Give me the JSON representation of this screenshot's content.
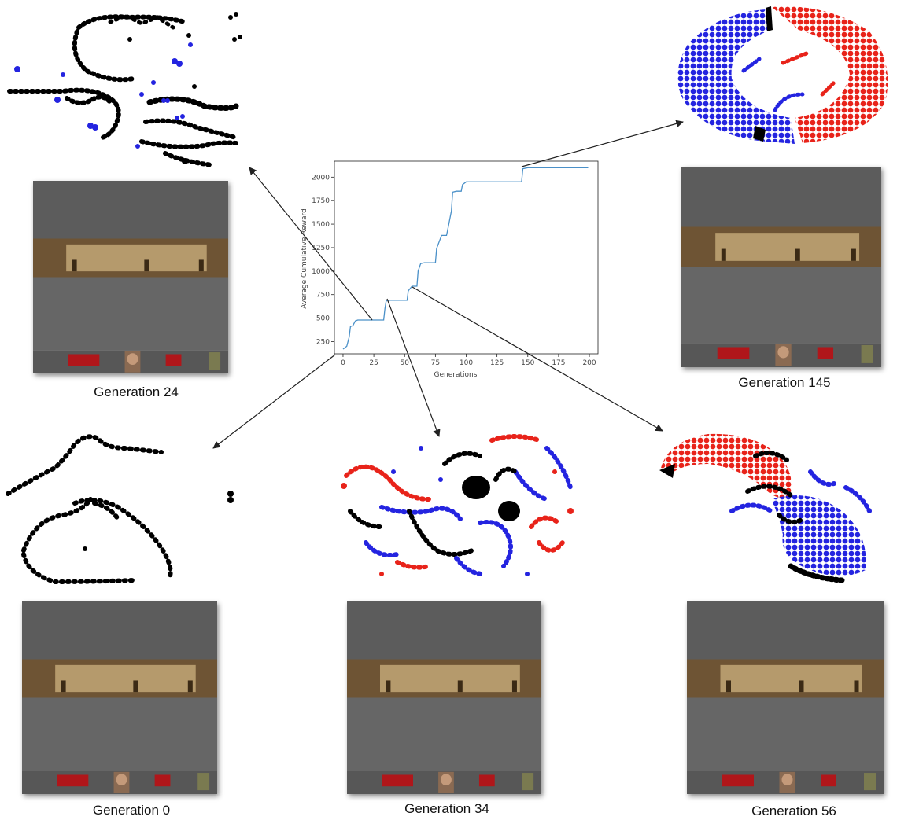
{
  "captions": {
    "gen24": "Generation 24",
    "gen145": "Generation 145",
    "gen0": "Generation 0",
    "gen34": "Generation 34",
    "gen56": "Generation 56"
  },
  "colors": {
    "series_line": "#4a90c8",
    "dot_red": "#e8231a",
    "dot_blue": "#2424e0",
    "dot_black": "#000000",
    "ceiling": "#5c5c5c",
    "wall_brown": "#6e5434",
    "wall_panel": "#b59a6c",
    "floor": "#666666",
    "hud": "#575757",
    "hud_red": "#b0161a"
  },
  "chart_data": {
    "type": "line",
    "xlabel": "Generations",
    "ylabel": "Average Cumulative Reward",
    "xlim": [
      -7,
      207
    ],
    "ylim": [
      120,
      2170
    ],
    "xticks": [
      0,
      25,
      50,
      75,
      100,
      125,
      150,
      175,
      200
    ],
    "yticks": [
      250,
      500,
      750,
      1000,
      1250,
      1500,
      1750,
      2000
    ],
    "grid": false,
    "series": [
      {
        "x": [
          0,
          3,
          5,
          6,
          8,
          10,
          12,
          22,
          24,
          33,
          34,
          35,
          36,
          52,
          53,
          56,
          60,
          61,
          63,
          66,
          70,
          75,
          76,
          80,
          84,
          85,
          88,
          89,
          92,
          96,
          97,
          100,
          127,
          145,
          146,
          150,
          195,
          199
        ],
        "y": [
          170,
          200,
          300,
          410,
          420,
          470,
          480,
          480,
          480,
          480,
          600,
          680,
          690,
          690,
          790,
          840,
          840,
          1000,
          1080,
          1090,
          1090,
          1090,
          1240,
          1380,
          1380,
          1440,
          1640,
          1840,
          1850,
          1850,
          1920,
          1950,
          1950,
          1950,
          2090,
          2100,
          2100,
          2100
        ]
      }
    ]
  }
}
